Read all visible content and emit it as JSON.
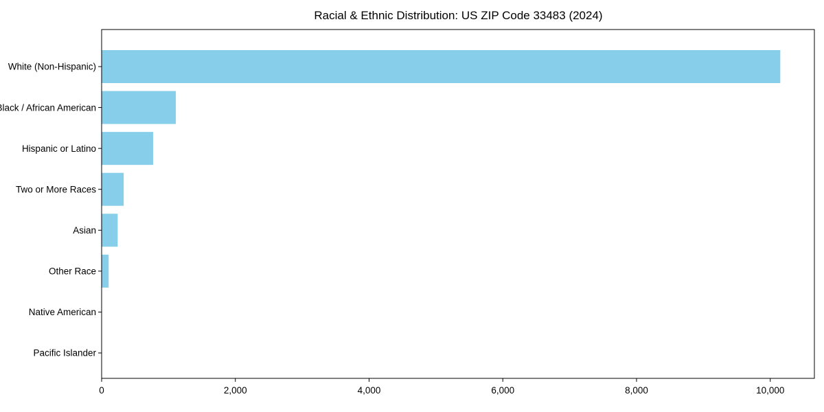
{
  "title": "Racial & Ethnic Distribution: US ZIP Code 33483 (2024)",
  "chart_data": {
    "type": "bar",
    "orientation": "horizontal",
    "title": "Racial & Ethnic Distribution: US ZIP Code 33483 (2024)",
    "xlabel": "",
    "ylabel": "",
    "categories": [
      "White (Non-Hispanic)",
      "Black / African American",
      "Hispanic or Latino",
      "Two or More Races",
      "Asian",
      "Other Race",
      "Native American",
      "Pacific Islander"
    ],
    "values": [
      10150,
      1110,
      770,
      330,
      240,
      105,
      0,
      0
    ],
    "xlim": [
      0,
      10660
    ],
    "x_ticks": [
      0,
      2000,
      4000,
      6000,
      8000,
      10000
    ],
    "x_tick_labels": [
      "0",
      "2,000",
      "4,000",
      "6,000",
      "8,000",
      "10,000"
    ],
    "bar_color": "#87CEEB",
    "axis_color": "#000000",
    "grid": false,
    "legend_position": "none"
  }
}
